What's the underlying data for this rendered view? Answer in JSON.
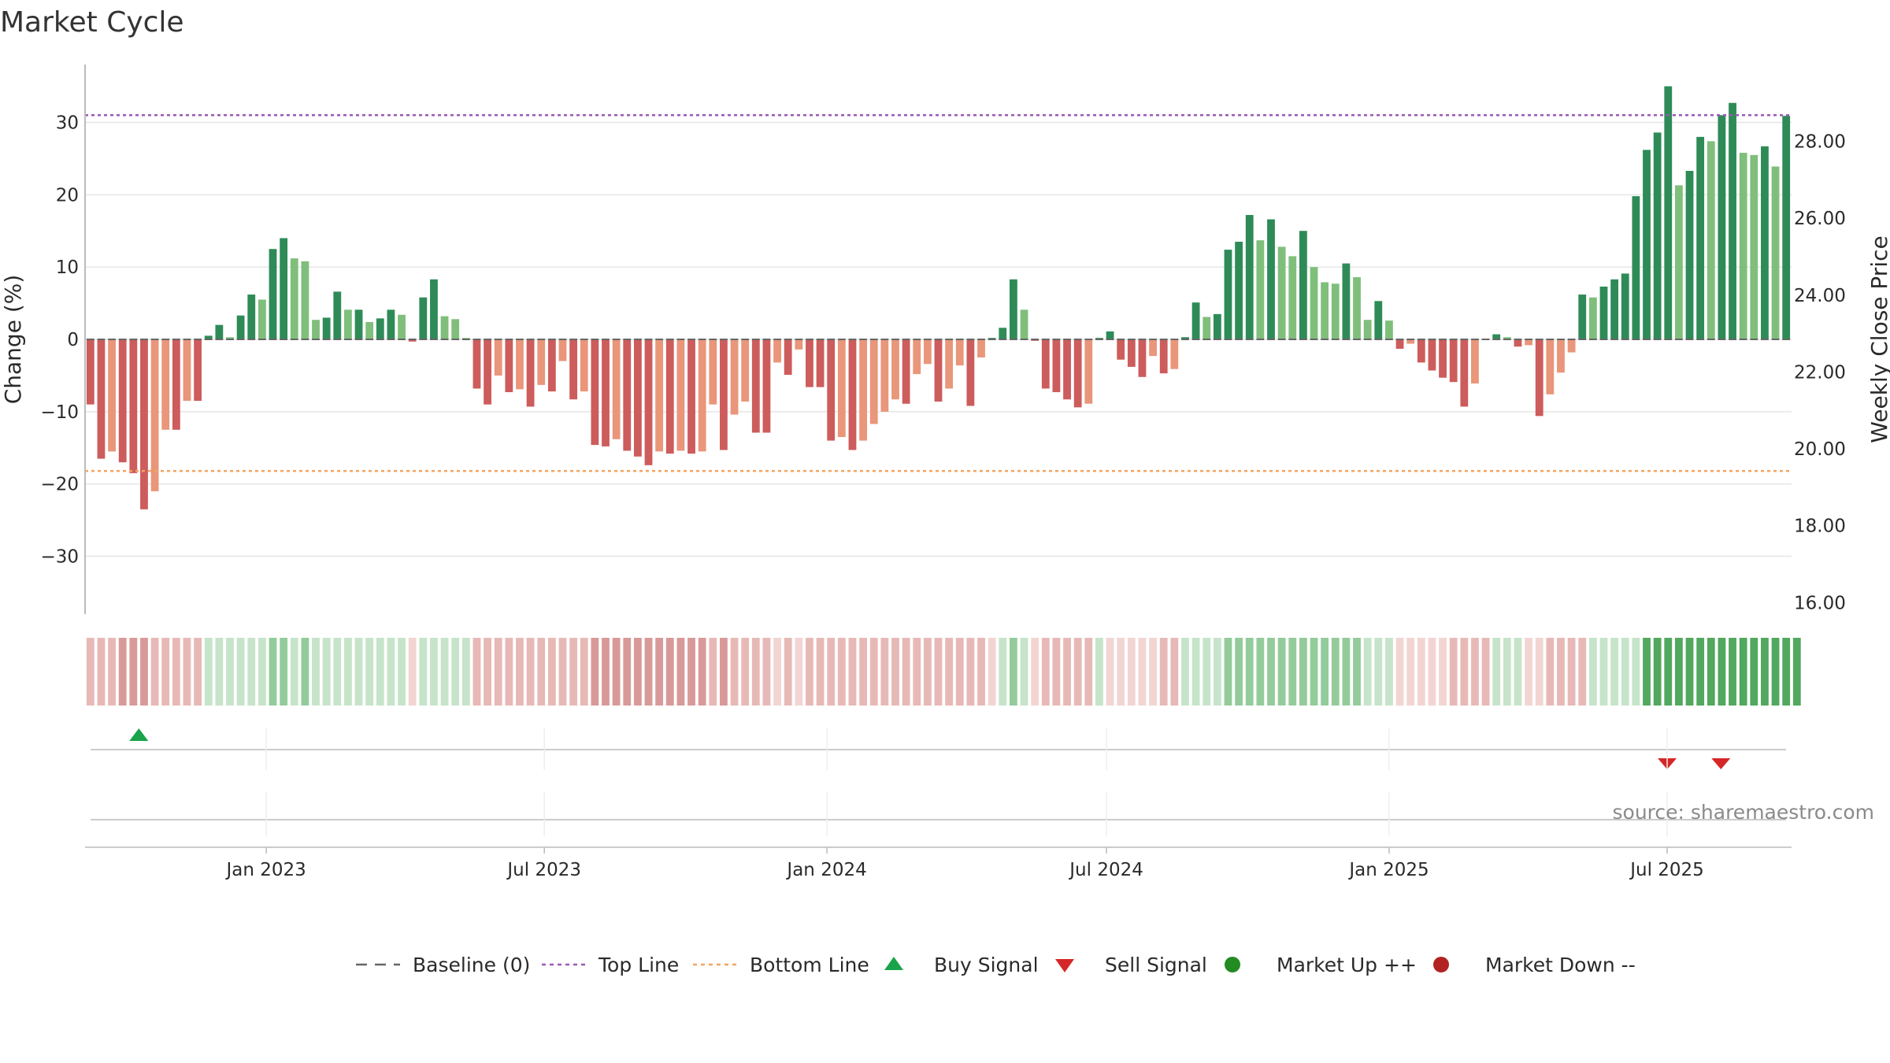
{
  "title": "Market Cycle",
  "source": "source: sharemaestro.com",
  "colors": {
    "bar_up_dark": "#2e8b57",
    "bar_up_light": "#7fbf7b",
    "bar_down_dark": "#cd5c5c",
    "bar_down_light": "#e9967a",
    "top_line": "#9b59b6",
    "bottom_line": "#f4a460",
    "baseline": "#666666",
    "buy": "#1aa34a",
    "sell": "#d62728",
    "market_up": "#228b22",
    "market_down": "#b22222"
  },
  "chart_data": {
    "type": "bar",
    "title": "Market Cycle",
    "ylabel": "Change (%)",
    "y2label": "Weekly Close Price",
    "ylim": [
      -38,
      38
    ],
    "y2lim": [
      15.7,
      30.0
    ],
    "yticks": [
      30,
      20,
      10,
      0,
      -10,
      -20,
      -30
    ],
    "ytick_labels": [
      "30",
      "20",
      "10",
      "0",
      "−10",
      "−20",
      "−30"
    ],
    "y2ticks": [
      28,
      26,
      24,
      22,
      20,
      18,
      16
    ],
    "y2tick_labels": [
      "28.00",
      "26.00",
      "24.00",
      "22.00",
      "20.00",
      "18.00",
      "16.00"
    ],
    "x_start": "2022-09-05",
    "x_end": "2025-09-20",
    "xticks": [
      {
        "date": "2023-01-01",
        "label": "Jan 2023"
      },
      {
        "date": "2023-07-01",
        "label": "Jul 2023"
      },
      {
        "date": "2024-01-01",
        "label": "Jan 2024"
      },
      {
        "date": "2024-07-01",
        "label": "Jul 2024"
      },
      {
        "date": "2025-01-01",
        "label": "Jan 2025"
      },
      {
        "date": "2025-07-01",
        "label": "Jul 2025"
      }
    ],
    "top_line": 31,
    "bottom_line": -18.2,
    "baseline": 0,
    "values": [
      -9,
      -16.5,
      -15.5,
      -17,
      -18.5,
      -23.5,
      -21,
      -12.5,
      -12.5,
      -8.5,
      -8.5,
      0.5,
      2,
      0.3,
      3.3,
      6.2,
      5.5,
      12.5,
      14,
      11.2,
      10.8,
      2.7,
      3,
      6.6,
      4.1,
      4.1,
      2.4,
      2.9,
      4.1,
      3.4,
      -0.3,
      5.8,
      8.3,
      3.2,
      2.8,
      0.2,
      -6.8,
      -9,
      -5,
      -7.3,
      -6.9,
      -9.3,
      -6.3,
      -7.2,
      -3,
      -8.3,
      -7.2,
      -14.6,
      -14.8,
      -13.8,
      -15.4,
      -16.2,
      -17.4,
      -15.5,
      -15.8,
      -15.4,
      -15.8,
      -15.5,
      -9,
      -15.3,
      -10.4,
      -8.6,
      -12.9,
      -12.9,
      -3.2,
      -4.9,
      -1.4,
      -6.6,
      -6.6,
      -14,
      -13.5,
      -15.3,
      -14,
      -11.7,
      -10,
      -8.3,
      -8.9,
      -4.8,
      -3.4,
      -8.6,
      -6.8,
      -3.6,
      -9.2,
      -2.5,
      0.2,
      1.6,
      8.3,
      4.1,
      -0.2,
      -6.8,
      -7.3,
      -8.3,
      -9.4,
      -8.9,
      0.2,
      1.1,
      -2.8,
      -3.8,
      -5.2,
      -2.3,
      -4.7,
      -4.1,
      0.3,
      5.1,
      3.1,
      3.5,
      12.4,
      13.5,
      17.2,
      13.7,
      16.6,
      12.8,
      11.5,
      15,
      10,
      7.9,
      7.7,
      10.5,
      8.6,
      2.7,
      5.3,
      2.6,
      -1.3,
      -0.6,
      -3.2,
      -4.3,
      -5.3,
      -5.9,
      -9.3,
      -6.1,
      0.1,
      0.7,
      0.3,
      -1,
      -0.8,
      -10.6,
      -7.6,
      -4.6,
      -1.8,
      6.2,
      5.8,
      7.3,
      8.3,
      9.1,
      19.8,
      26.2,
      28.6,
      35,
      21.3,
      23.3,
      28,
      27.4,
      31,
      32.7,
      25.8,
      25.5,
      26.7,
      23.9,
      30.9
    ],
    "buy_signals": [
      "2022-10-10"
    ],
    "sell_signals": [
      "2025-07-01",
      "2025-08-05"
    ],
    "regime_strip": [
      -1,
      -1,
      -1,
      -2,
      -2,
      -2,
      -1,
      -1,
      -1,
      -1,
      -1,
      1,
      1,
      1,
      1,
      1,
      1,
      2,
      2,
      1,
      2,
      1,
      1,
      1,
      1,
      1,
      1,
      1,
      1,
      1,
      0,
      1,
      1,
      1,
      1,
      1,
      -1,
      -1,
      -1,
      -1,
      -1,
      -1,
      -1,
      -1,
      -1,
      -1,
      -1,
      -2,
      -2,
      -2,
      -2,
      -2,
      -2,
      -2,
      -2,
      -2,
      -2,
      -2,
      -1,
      -2,
      -1,
      -1,
      -1,
      -1,
      0,
      -1,
      0,
      -1,
      -1,
      -1,
      -1,
      -1,
      -1,
      -1,
      -1,
      -1,
      -1,
      -1,
      -1,
      -1,
      -1,
      -1,
      -1,
      -1,
      0,
      1,
      2,
      1,
      0,
      -1,
      -1,
      -1,
      -1,
      -1,
      1,
      0,
      0,
      0,
      0,
      0,
      -1,
      -1,
      1,
      1,
      1,
      1,
      2,
      2,
      2,
      2,
      2,
      2,
      2,
      2,
      2,
      2,
      2,
      2,
      2,
      1,
      1,
      1,
      0,
      0,
      0,
      0,
      0,
      -1,
      -1,
      -1,
      -1,
      1,
      1,
      1,
      0,
      0,
      -1,
      -1,
      -1,
      -1,
      1,
      1,
      1,
      1,
      1,
      3,
      3,
      3,
      3,
      3,
      3,
      3,
      3,
      3,
      3,
      3,
      3,
      3,
      3,
      3
    ],
    "legend": [
      "Baseline (0)",
      "Top Line",
      "Bottom Line",
      "Buy Signal",
      "Sell Signal",
      "Market Up ++",
      "Market Down --"
    ]
  }
}
